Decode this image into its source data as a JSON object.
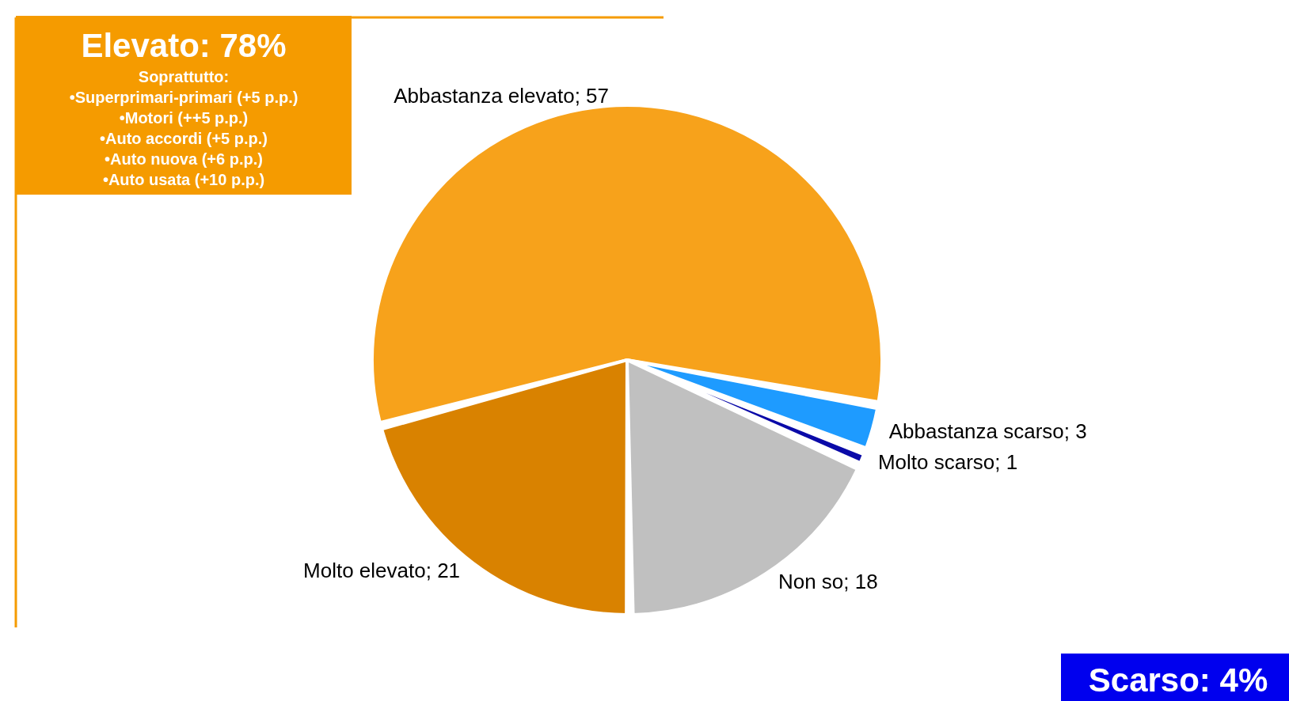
{
  "chart_data": {
    "type": "pie",
    "categories": [
      "Abbastanza elevato",
      "Abbastanza scarso",
      "Molto scarso",
      "Non so",
      "Molto elevato"
    ],
    "values": [
      57,
      3,
      1,
      18,
      21
    ],
    "colors": [
      "#f7a21b",
      "#1e9bff",
      "#0a0aa8",
      "#c0c0c0",
      "#d98200"
    ],
    "value_labels": [
      "; 57",
      "; 3",
      "; 1",
      "; 18",
      "; 21"
    ],
    "legend": false,
    "annotations": [
      "Elevato: 78%",
      "Soprattutto:",
      "•Superprimari-primari (+5 p.p.)",
      "•Motori (++5 p.p.)",
      "•Auto accordi (+5 p.p.)",
      "•Auto nuova (+6 p.p.)",
      "•Auto usata (+10 p.p.)",
      "Scarso: 4%"
    ]
  }
}
